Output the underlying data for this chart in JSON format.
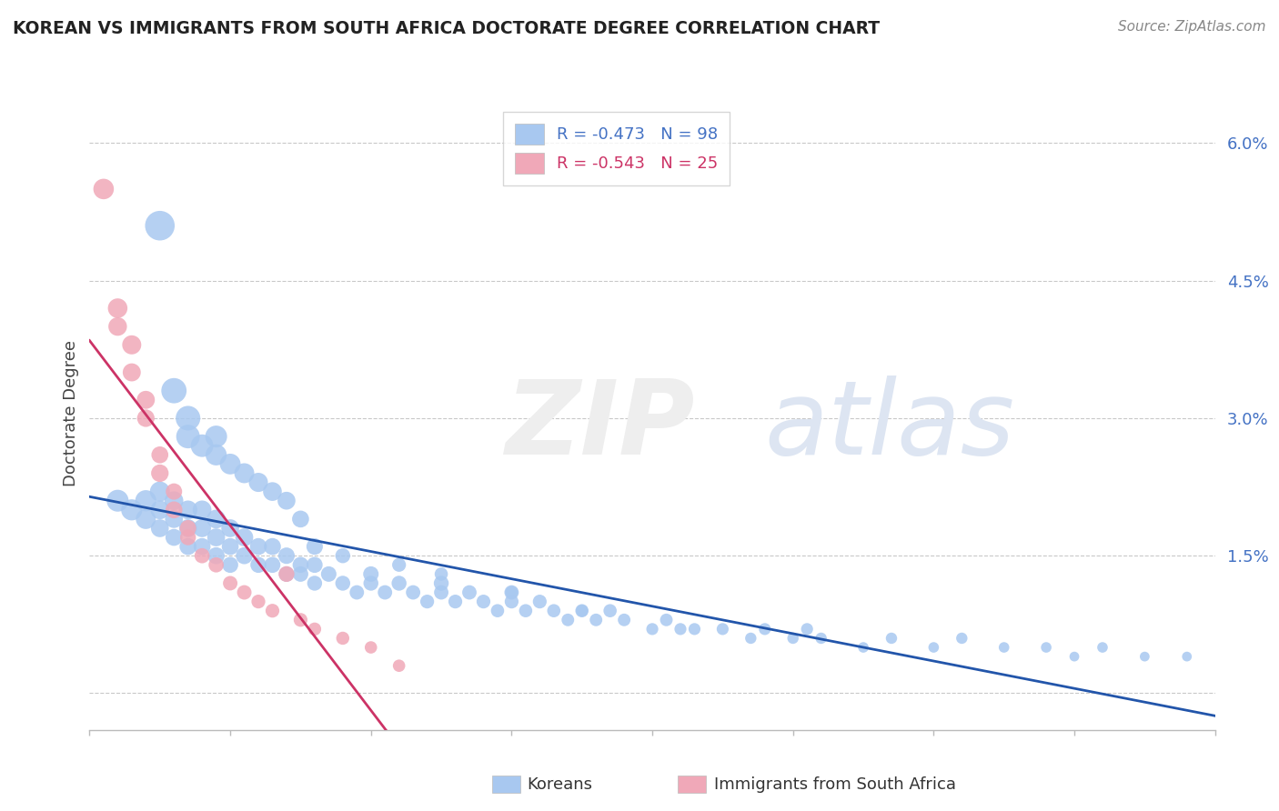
{
  "title": "KOREAN VS IMMIGRANTS FROM SOUTH AFRICA DOCTORATE DEGREE CORRELATION CHART",
  "source": "Source: ZipAtlas.com",
  "ylabel": "Doctorate Degree",
  "y_ticks": [
    0.0,
    0.015,
    0.03,
    0.045,
    0.06
  ],
  "y_tick_labels": [
    "",
    "1.5%",
    "3.0%",
    "4.5%",
    "6.0%"
  ],
  "x_min": 0.0,
  "x_max": 0.8,
  "y_min": -0.004,
  "y_max": 0.065,
  "korean_R": -0.473,
  "korean_N": 98,
  "sa_R": -0.543,
  "sa_N": 25,
  "korean_color": "#a8c8f0",
  "sa_color": "#f0a8b8",
  "korean_line_color": "#2255aa",
  "sa_line_color": "#cc3366",
  "legend_label_korean": "Koreans",
  "legend_label_sa": "Immigrants from South Africa",
  "korean_x": [
    0.02,
    0.03,
    0.04,
    0.04,
    0.05,
    0.05,
    0.05,
    0.06,
    0.06,
    0.06,
    0.07,
    0.07,
    0.07,
    0.08,
    0.08,
    0.08,
    0.09,
    0.09,
    0.09,
    0.1,
    0.1,
    0.1,
    0.11,
    0.11,
    0.12,
    0.12,
    0.13,
    0.13,
    0.14,
    0.14,
    0.15,
    0.15,
    0.16,
    0.16,
    0.17,
    0.18,
    0.19,
    0.2,
    0.2,
    0.21,
    0.22,
    0.23,
    0.24,
    0.25,
    0.25,
    0.26,
    0.27,
    0.28,
    0.29,
    0.3,
    0.3,
    0.31,
    0.32,
    0.33,
    0.34,
    0.35,
    0.36,
    0.37,
    0.38,
    0.4,
    0.41,
    0.42,
    0.43,
    0.45,
    0.47,
    0.48,
    0.5,
    0.51,
    0.52,
    0.55,
    0.57,
    0.6,
    0.62,
    0.65,
    0.68,
    0.7,
    0.72,
    0.75,
    0.78,
    0.05,
    0.06,
    0.07,
    0.07,
    0.08,
    0.09,
    0.09,
    0.1,
    0.11,
    0.12,
    0.13,
    0.14,
    0.15,
    0.16,
    0.18,
    0.22,
    0.25,
    0.3,
    0.35
  ],
  "korean_y": [
    0.021,
    0.02,
    0.019,
    0.021,
    0.02,
    0.018,
    0.022,
    0.019,
    0.021,
    0.017,
    0.018,
    0.02,
    0.016,
    0.018,
    0.016,
    0.02,
    0.017,
    0.019,
    0.015,
    0.016,
    0.018,
    0.014,
    0.015,
    0.017,
    0.014,
    0.016,
    0.014,
    0.016,
    0.013,
    0.015,
    0.013,
    0.014,
    0.012,
    0.014,
    0.013,
    0.012,
    0.011,
    0.012,
    0.013,
    0.011,
    0.012,
    0.011,
    0.01,
    0.011,
    0.012,
    0.01,
    0.011,
    0.01,
    0.009,
    0.01,
    0.011,
    0.009,
    0.01,
    0.009,
    0.008,
    0.009,
    0.008,
    0.009,
    0.008,
    0.007,
    0.008,
    0.007,
    0.007,
    0.007,
    0.006,
    0.007,
    0.006,
    0.007,
    0.006,
    0.005,
    0.006,
    0.005,
    0.006,
    0.005,
    0.005,
    0.004,
    0.005,
    0.004,
    0.004,
    0.051,
    0.033,
    0.028,
    0.03,
    0.027,
    0.028,
    0.026,
    0.025,
    0.024,
    0.023,
    0.022,
    0.021,
    0.019,
    0.016,
    0.015,
    0.014,
    0.013,
    0.011,
    0.009
  ],
  "korean_sizes": [
    30,
    28,
    25,
    28,
    22,
    20,
    25,
    20,
    22,
    18,
    20,
    22,
    18,
    20,
    18,
    22,
    20,
    22,
    18,
    18,
    20,
    16,
    18,
    20,
    16,
    18,
    16,
    18,
    15,
    17,
    15,
    16,
    14,
    16,
    15,
    14,
    13,
    14,
    15,
    13,
    14,
    13,
    12,
    13,
    14,
    12,
    13,
    12,
    11,
    12,
    13,
    11,
    12,
    11,
    10,
    11,
    10,
    11,
    10,
    9,
    10,
    9,
    9,
    9,
    8,
    9,
    8,
    9,
    8,
    7,
    8,
    7,
    8,
    7,
    7,
    6,
    7,
    6,
    6,
    55,
    40,
    35,
    38,
    32,
    30,
    28,
    27,
    25,
    23,
    22,
    20,
    18,
    17,
    14,
    12,
    11,
    10,
    9
  ],
  "sa_x": [
    0.01,
    0.02,
    0.02,
    0.03,
    0.03,
    0.04,
    0.04,
    0.05,
    0.05,
    0.06,
    0.06,
    0.07,
    0.07,
    0.08,
    0.09,
    0.1,
    0.11,
    0.12,
    0.13,
    0.14,
    0.15,
    0.16,
    0.18,
    0.2,
    0.22
  ],
  "sa_y": [
    0.055,
    0.042,
    0.04,
    0.035,
    0.038,
    0.03,
    0.032,
    0.026,
    0.024,
    0.022,
    0.02,
    0.018,
    0.017,
    0.015,
    0.014,
    0.012,
    0.011,
    0.01,
    0.009,
    0.013,
    0.008,
    0.007,
    0.006,
    0.005,
    0.003
  ],
  "sa_sizes": [
    22,
    20,
    18,
    17,
    19,
    16,
    17,
    15,
    16,
    14,
    15,
    14,
    13,
    12,
    12,
    11,
    11,
    10,
    10,
    13,
    10,
    9,
    9,
    8,
    8
  ]
}
